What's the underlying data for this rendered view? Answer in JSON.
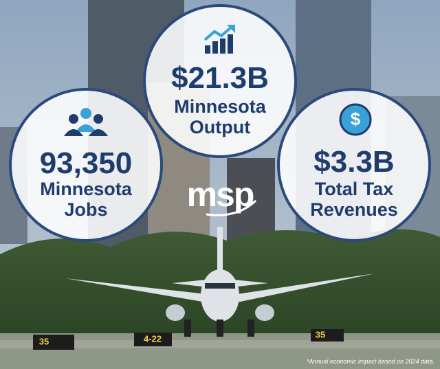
{
  "stats": [
    {
      "value": "93,350",
      "lines": [
        "Minnesota",
        "Jobs"
      ]
    },
    {
      "value": "$21.3B",
      "lines": [
        "Minnesota",
        "Output"
      ]
    },
    {
      "value": "$3.3B",
      "lines": [
        "Total Tax",
        "Revenues"
      ]
    }
  ],
  "logo": "msp",
  "signs": [
    "35",
    "4-22",
    "35"
  ],
  "footnote": "*Annual economic impact based on 2024 data."
}
